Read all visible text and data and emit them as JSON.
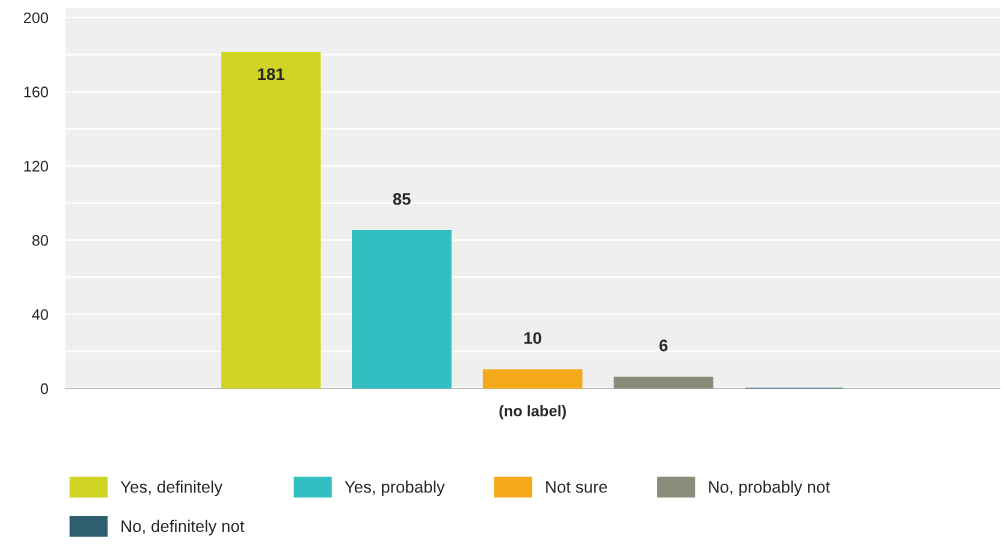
{
  "chart_data": {
    "type": "bar",
    "categories": [
      "(no label)"
    ],
    "series": [
      {
        "name": "Yes, definitely",
        "color": "#d0d424",
        "values": [
          181
        ],
        "value_labels": [
          "181"
        ]
      },
      {
        "name": "Yes, probably",
        "color": "#33bec1",
        "values": [
          85
        ],
        "value_labels": [
          "85"
        ]
      },
      {
        "name": "Not sure",
        "color": "#f5aa1c",
        "values": [
          10
        ],
        "value_labels": [
          "10"
        ]
      },
      {
        "name": "No, probably not",
        "color": "#8a8c7a",
        "values": [
          6
        ],
        "value_labels": [
          "6"
        ]
      },
      {
        "name": "No, definitely not",
        "color": "#2f5f6e",
        "values": [
          0
        ],
        "value_labels": [
          null
        ]
      }
    ],
    "ylim": [
      0,
      205
    ],
    "yticks": [
      0,
      {
        "value": 20,
        "label": null
      },
      40,
      {
        "value": 60,
        "label": null
      },
      80,
      {
        "value": 100,
        "label": null
      },
      120,
      {
        "value": 140,
        "label": null
      },
      160,
      {
        "value": 180,
        "label": null
      },
      200
    ],
    "grid": "y",
    "legend": "bottom"
  }
}
